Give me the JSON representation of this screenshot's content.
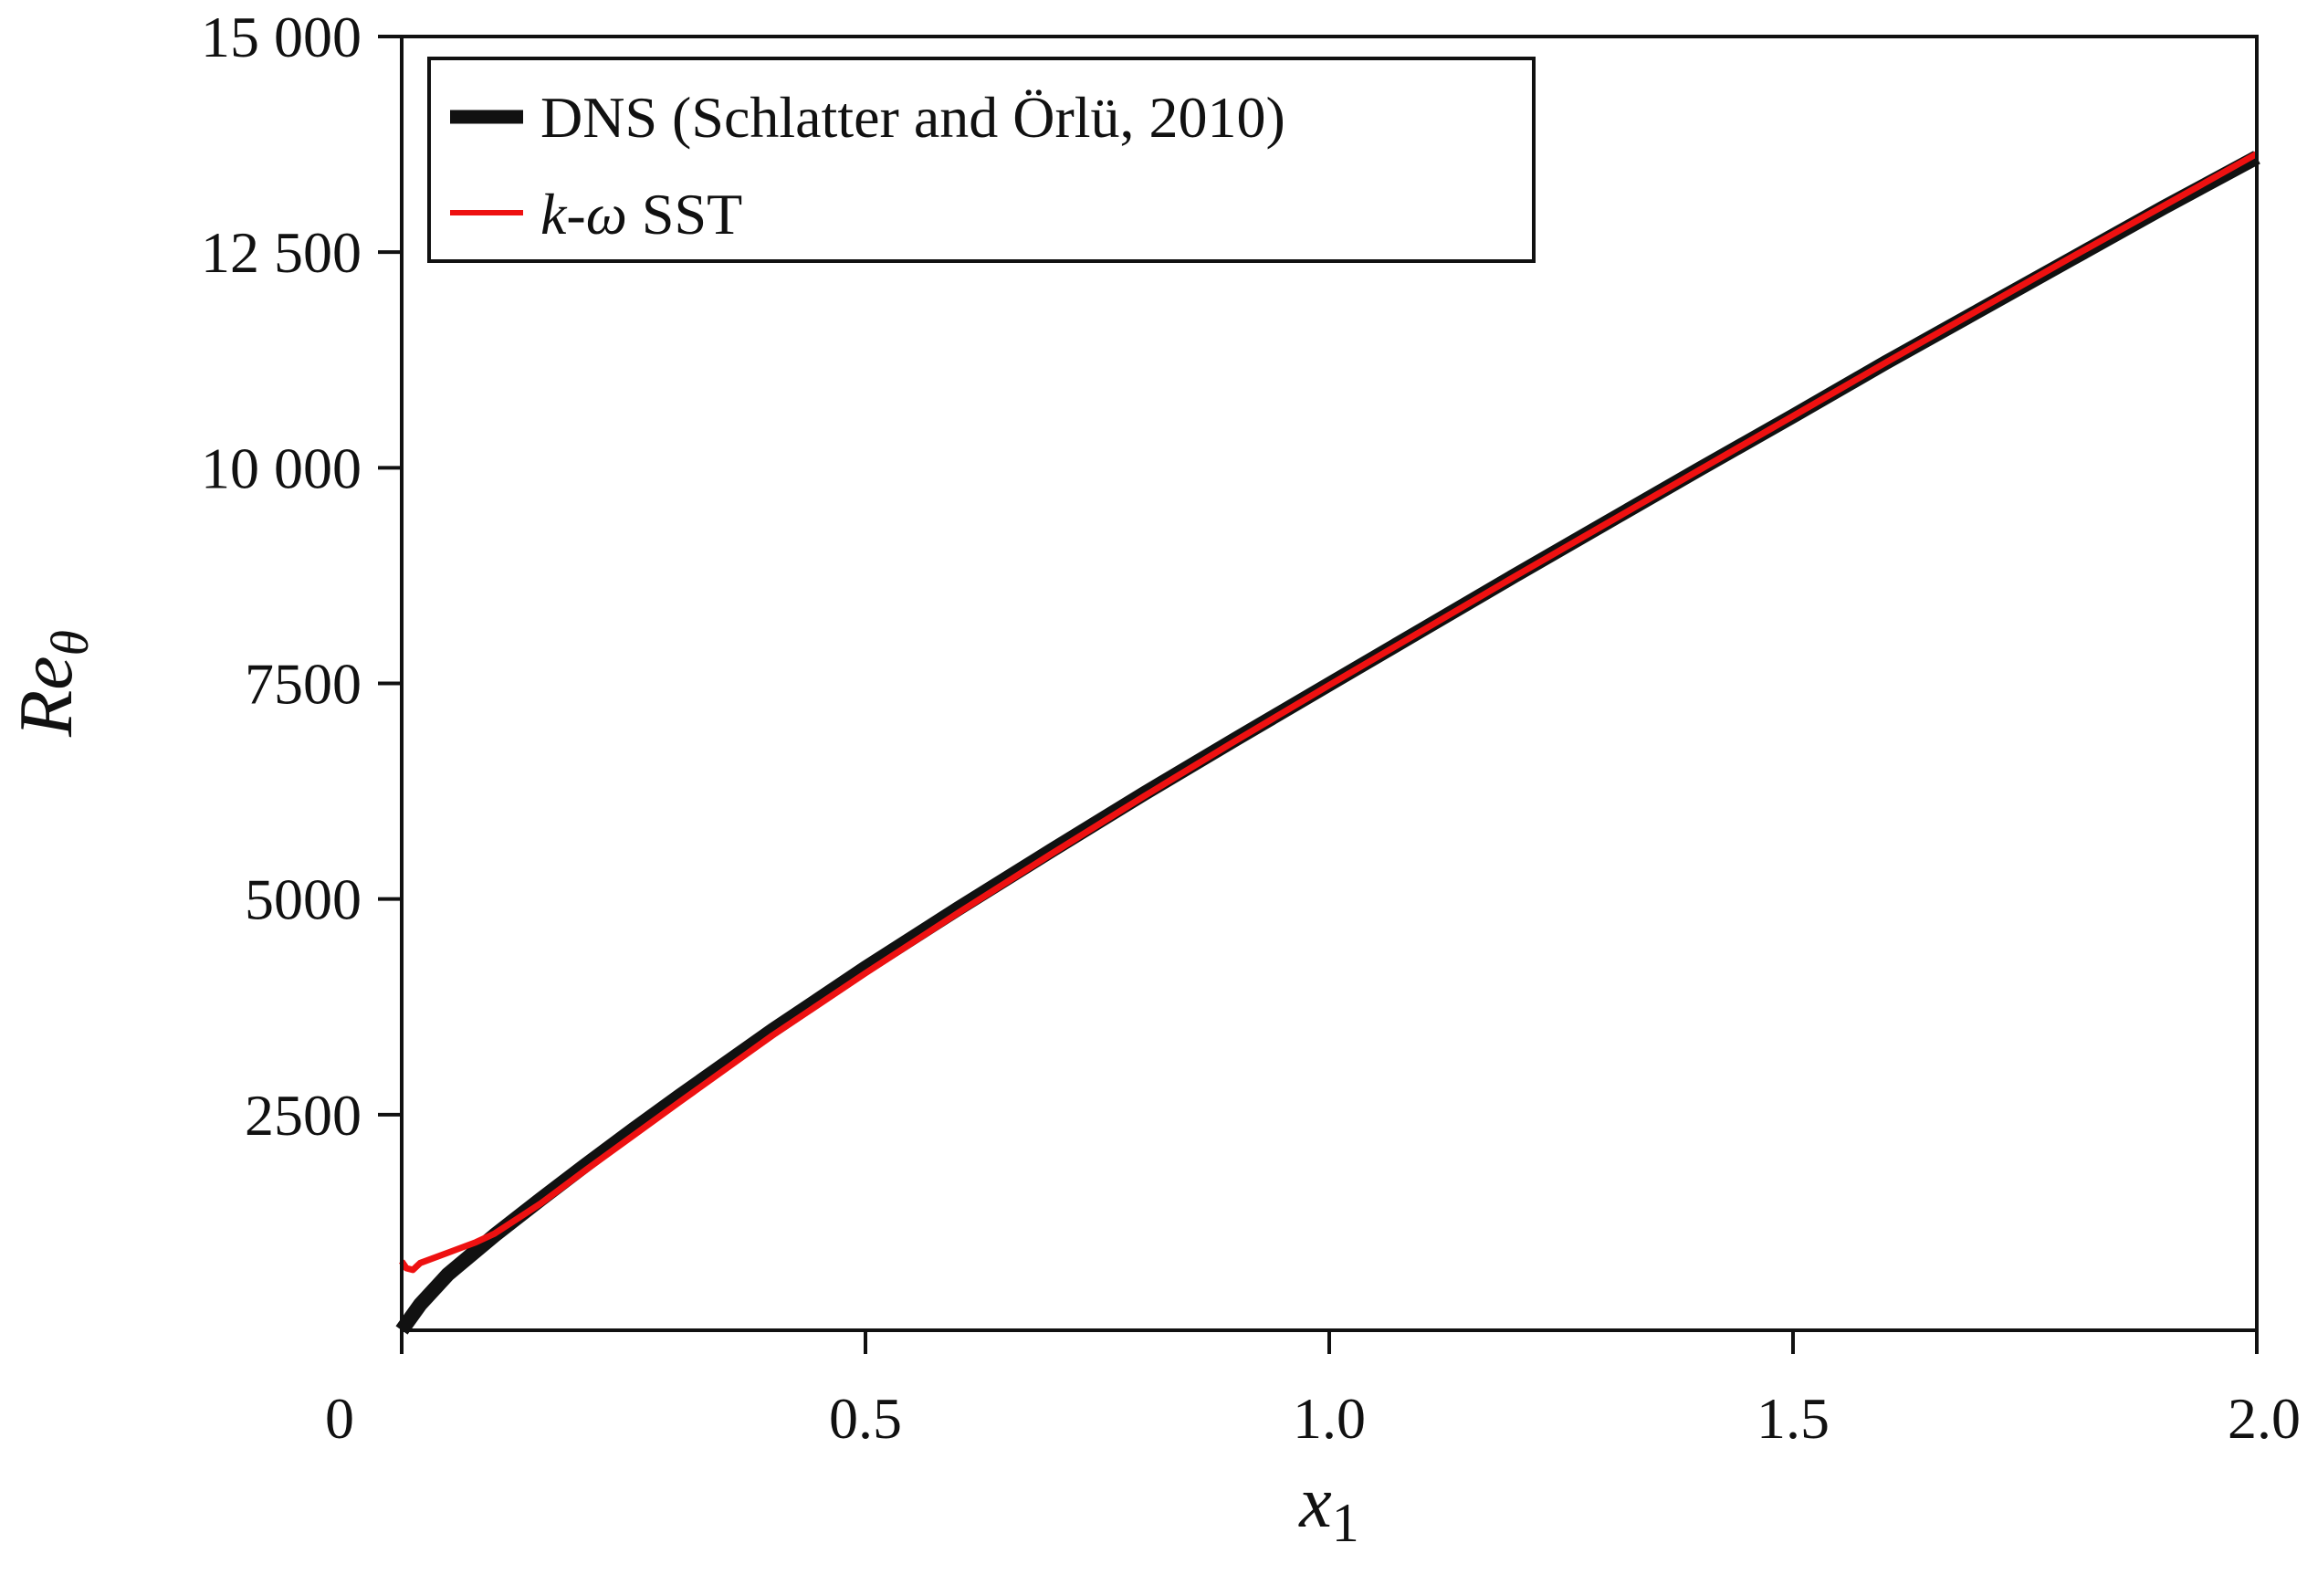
{
  "chart_data": {
    "type": "line",
    "title": "",
    "xlabel": "x",
    "xlabel_sub": "1",
    "ylabel": "Re",
    "ylabel_sub": "θ",
    "xlim": [
      0,
      2.0
    ],
    "ylim": [
      0,
      15000
    ],
    "xticks": [
      0,
      0.5,
      1.0,
      1.5,
      2.0
    ],
    "xtick_labels": [
      "0",
      "0.5",
      "1.0",
      "1.5",
      "2.0"
    ],
    "yticks": [
      2500,
      5000,
      7500,
      10000,
      12500,
      15000
    ],
    "ytick_labels": [
      "2500",
      "5000",
      "7500",
      "10 000",
      "12 500",
      "15 000"
    ],
    "grid": false,
    "legend_position": "top-left",
    "series": [
      {
        "name": "DNS (Schlatter and Örlü, 2010)",
        "color": "#111111",
        "x": [
          0.0,
          0.02,
          0.05,
          0.1,
          0.15,
          0.2,
          0.25,
          0.3,
          0.4,
          0.5,
          0.6,
          0.7,
          0.8,
          0.9,
          1.0,
          1.1,
          1.2,
          1.3,
          1.4,
          1.5,
          1.6,
          1.7,
          1.8,
          1.9,
          2.0
        ],
        "y": [
          0,
          300,
          650,
          1100,
          1520,
          1930,
          2330,
          2720,
          3480,
          4200,
          4890,
          5560,
          6220,
          6860,
          7490,
          8120,
          8750,
          9370,
          9990,
          10600,
          11220,
          11820,
          12420,
          13020,
          13600
        ]
      },
      {
        "name_prefix": "k-ω",
        "name_suffix": " SST",
        "color": "#ee1111",
        "x": [
          0.0,
          0.005,
          0.012,
          0.02,
          0.05,
          0.08,
          0.1,
          0.15,
          0.2,
          0.25,
          0.3,
          0.4,
          0.5,
          0.6,
          0.7,
          0.8,
          0.9,
          1.0,
          1.1,
          1.2,
          1.3,
          1.4,
          1.5,
          1.6,
          1.7,
          1.8,
          1.9,
          2.0
        ],
        "y": [
          800,
          720,
          700,
          780,
          900,
          1020,
          1120,
          1470,
          1870,
          2260,
          2650,
          3420,
          4140,
          4840,
          5520,
          6190,
          6840,
          7480,
          8110,
          8740,
          9360,
          9980,
          10600,
          11220,
          11830,
          12440,
          13040,
          13640
        ]
      }
    ]
  }
}
